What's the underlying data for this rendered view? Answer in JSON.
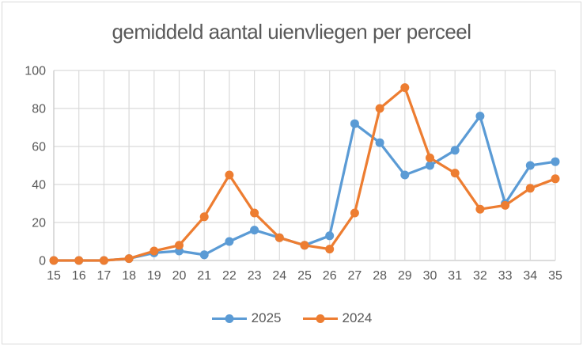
{
  "chart_data": {
    "type": "line",
    "title": "gemiddeld aantal uienvliegen per perceel",
    "xlabel": "",
    "ylabel": "",
    "categories": [
      15,
      16,
      17,
      18,
      19,
      20,
      21,
      22,
      23,
      24,
      25,
      26,
      27,
      28,
      29,
      30,
      31,
      32,
      33,
      34,
      35
    ],
    "yticks": [
      0,
      20,
      40,
      60,
      80,
      100
    ],
    "ylim": [
      0,
      100
    ],
    "grid": "horizontal-and-vertical",
    "legend_position": "bottom-center",
    "series": [
      {
        "name": "2025",
        "color": "#5B9BD5",
        "values": [
          0,
          0,
          0,
          1,
          4,
          5,
          3,
          10,
          16,
          12,
          8,
          13,
          72,
          62,
          45,
          50,
          58,
          76,
          30,
          50,
          52
        ]
      },
      {
        "name": "2024",
        "color": "#ED7D31",
        "values": [
          0,
          0,
          0,
          1,
          5,
          8,
          23,
          45,
          25,
          12,
          8,
          6,
          25,
          80,
          91,
          54,
          46,
          27,
          29,
          38,
          43
        ]
      }
    ],
    "colors": {
      "text": "#595959",
      "gridline": "#DADADA",
      "axis": "#C6C6C6",
      "border": "#D9D9D9",
      "background": "#FFFFFF"
    }
  }
}
